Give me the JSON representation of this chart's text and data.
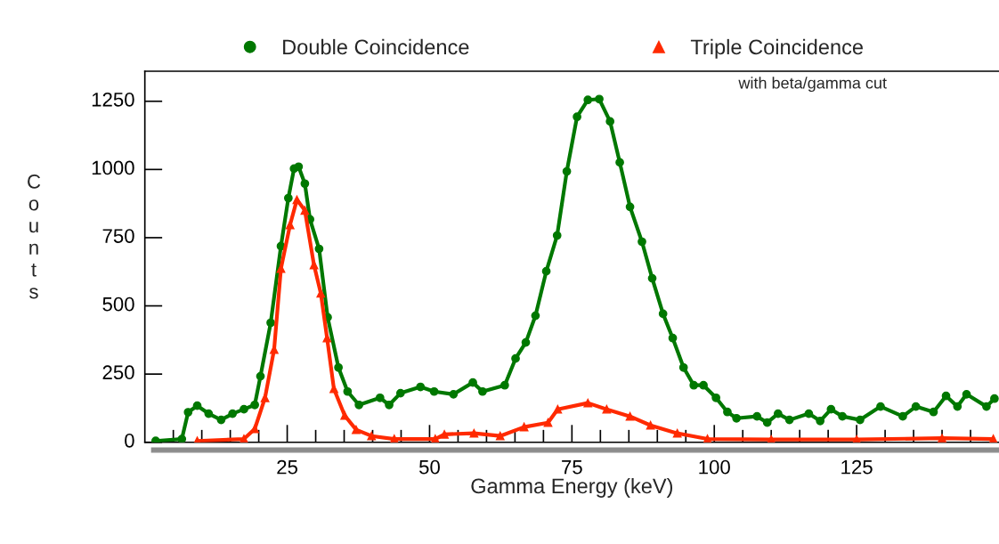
{
  "chart_data": {
    "type": "line",
    "xlabel": "Gamma Energy (keV)",
    "ylabel": "Counts",
    "xlim": [
      0,
      150
    ],
    "ylim": [
      0,
      1360
    ],
    "xticks": [
      {
        "value": 5,
        "label": null
      },
      {
        "value": 10,
        "label": null
      },
      {
        "value": 15,
        "label": null
      },
      {
        "value": 20,
        "label": null
      },
      25,
      {
        "value": 30,
        "label": null
      },
      {
        "value": 35,
        "label": null
      },
      {
        "value": 40,
        "label": null
      },
      {
        "value": 45,
        "label": null
      },
      50,
      {
        "value": 55,
        "label": null
      },
      {
        "value": 60,
        "label": null
      },
      {
        "value": 65,
        "label": null
      },
      {
        "value": 70,
        "label": null
      },
      75,
      {
        "value": 80,
        "label": null
      },
      {
        "value": 85,
        "label": null
      },
      {
        "value": 90,
        "label": null
      },
      {
        "value": 95,
        "label": null
      },
      100,
      {
        "value": 105,
        "label": null
      },
      {
        "value": 110,
        "label": null
      },
      {
        "value": 115,
        "label": null
      },
      {
        "value": 120,
        "label": null
      },
      125,
      {
        "value": 130,
        "label": null
      },
      {
        "value": 135,
        "label": null
      },
      {
        "value": 140,
        "label": null
      },
      {
        "value": 145,
        "label": null
      }
    ],
    "yticks": [
      0,
      250,
      500,
      750,
      1000,
      1250
    ],
    "grid": false,
    "legend": "top",
    "annotations": [
      "with beta/gamma cut"
    ],
    "series": [
      {
        "name": "Double Coincidence",
        "color": "#007800",
        "marker": "circle",
        "x": [
          1.9,
          6.5,
          7.6,
          9.2,
          11.2,
          13.4,
          15.4,
          17.4,
          19.3,
          20.3,
          22.1,
          23.9,
          25.2,
          26.2,
          27,
          28.1,
          29,
          30.6,
          32.1,
          34,
          35.6,
          37.6,
          41.3,
          42.9,
          44.9,
          48.4,
          50.8,
          54.2,
          57.6,
          59.3,
          63.2,
          65.1,
          66.9,
          68.6,
          70.5,
          72.4,
          74.1,
          75.9,
          77.8,
          79.8,
          81.7,
          83.4,
          85.2,
          87.3,
          89.1,
          91,
          92.7,
          94.6,
          96.4,
          98.1,
          100.3,
          102.3,
          103.9,
          107.5,
          109.3,
          111.2,
          113.2,
          116.6,
          118.6,
          120.5,
          122.5,
          125.6,
          129.2,
          133.1,
          135.4,
          138.5,
          140.7,
          142.7,
          144.3,
          147.8,
          149.2
        ],
        "values": [
          5,
          12,
          110,
          134,
          105,
          82,
          105,
          121,
          137,
          242,
          438,
          719,
          895,
          1003,
          1010,
          948,
          817,
          709,
          458,
          274,
          186,
          137,
          163,
          137,
          180,
          203,
          186,
          176,
          219,
          186,
          209,
          307,
          366,
          464,
          627,
          758,
          993,
          1193,
          1255,
          1258,
          1176,
          1026,
          863,
          735,
          601,
          471,
          382,
          274,
          209,
          209,
          163,
          111,
          88,
          95,
          72,
          105,
          82,
          105,
          78,
          121,
          95,
          82,
          131,
          95,
          131,
          111,
          170,
          131,
          176,
          131,
          160
        ]
      },
      {
        "name": "Triple Coincidence",
        "color": "#ff2a00",
        "marker": "triangle",
        "x": [
          9.2,
          17.4,
          19.3,
          21.1,
          22.7,
          23.9,
          25.5,
          26.7,
          28.1,
          29.7,
          30.9,
          32,
          33.2,
          35.1,
          37.1,
          39.8,
          43.8,
          51,
          52.6,
          57.8,
          62.4,
          66.6,
          70.8,
          72.5,
          77.8,
          81.1,
          85.2,
          88.8,
          93.5,
          98.8,
          110,
          125,
          140,
          149
        ],
        "values": [
          5,
          12,
          49,
          163,
          340,
          637,
          797,
          889,
          850,
          650,
          546,
          382,
          196,
          98,
          46,
          23,
          12,
          12,
          29,
          33,
          23,
          56,
          72,
          121,
          144,
          121,
          95,
          62,
          33,
          12,
          10,
          10,
          15,
          12
        ]
      }
    ]
  }
}
